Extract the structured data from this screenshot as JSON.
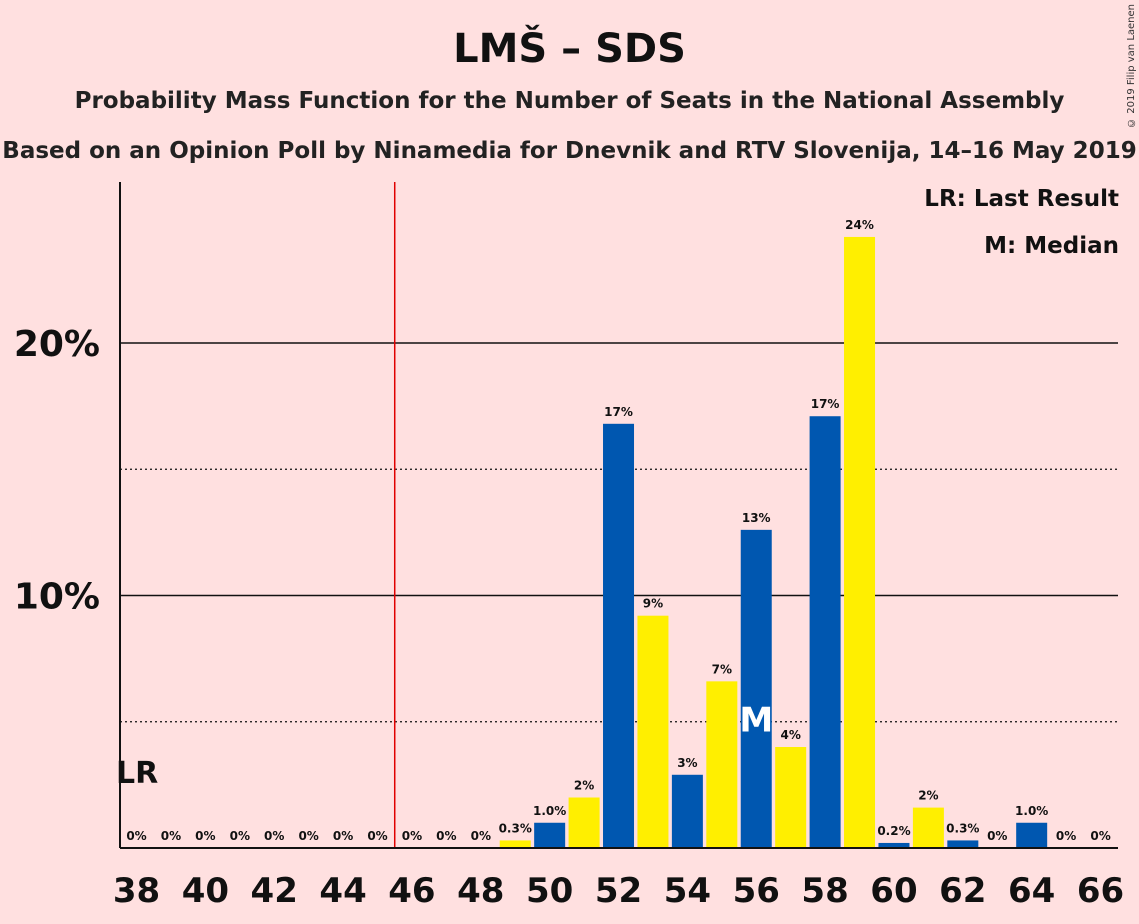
{
  "title": "LMŠ – SDS",
  "subtitle": "Probability Mass Function for the Number of Seats in the National Assembly",
  "subtitle2": "Based on an Opinion Poll by Ninamedia for Dnevnik and RTV Slovenija, 14–16 May 2019",
  "copyright": "© 2019 Filip van Laenen",
  "legend": {
    "lr": "LR: Last Result",
    "m": "M: Median"
  },
  "colors": {
    "background": "#ffe0e0",
    "blue": "#0057b0",
    "yellow": "#ffef00",
    "red": "#e00000"
  },
  "chart_data": {
    "type": "bar",
    "x": [
      38,
      39,
      40,
      41,
      42,
      43,
      44,
      45,
      46,
      47,
      48,
      49,
      50,
      51,
      52,
      53,
      54,
      55,
      56,
      57,
      58,
      59,
      60,
      61,
      62,
      63,
      64,
      65,
      66
    ],
    "values": [
      0,
      0,
      0,
      0,
      0,
      0,
      0,
      0,
      0,
      0,
      0,
      0.3,
      1.0,
      2.0,
      16.8,
      9.2,
      2.9,
      6.6,
      12.6,
      4.0,
      17.1,
      24.2,
      0.2,
      1.6,
      0.3,
      0,
      1.0,
      0,
      0
    ],
    "value_labels": [
      "0%",
      "0%",
      "0%",
      "0%",
      "0%",
      "0%",
      "0%",
      "0%",
      "0%",
      "0%",
      "0%",
      "0.3%",
      "1.0%",
      "2%",
      "17%",
      "9%",
      "3%",
      "7%",
      "13%",
      "4%",
      "17%",
      "24%",
      "0.2%",
      "2%",
      "0.3%",
      "0%",
      "1.0%",
      "0%",
      "0%"
    ],
    "x_tick_labels": [
      "38",
      "40",
      "42",
      "44",
      "46",
      "48",
      "50",
      "52",
      "54",
      "56",
      "58",
      "60",
      "62",
      "64",
      "66"
    ],
    "y_ticks": [
      10,
      20
    ],
    "y_tick_labels": [
      "10%",
      "20%"
    ],
    "ylim": [
      0,
      26.3
    ],
    "majority_line_x": 45.5,
    "last_result_seat": 38,
    "last_result_label": "LR",
    "median_seat": 56,
    "median_label": "M",
    "legend_position": "top-right"
  }
}
